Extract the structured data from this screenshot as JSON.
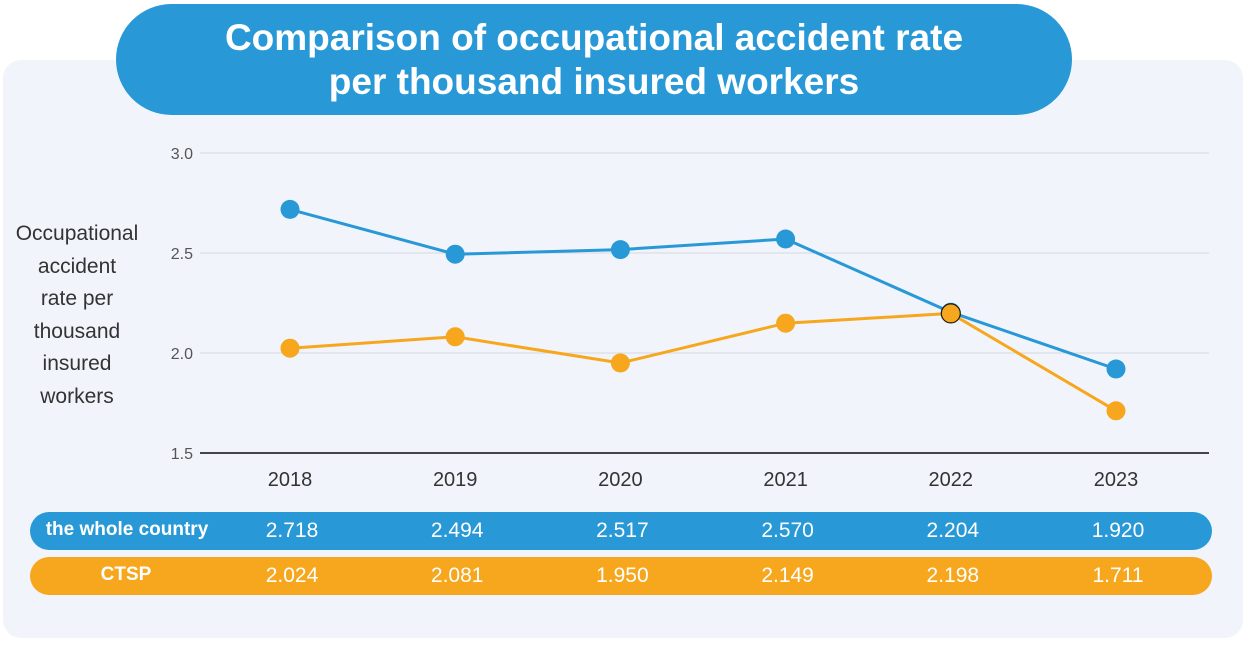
{
  "title_lines": [
    "Comparison of occupational accident rate",
    "per thousand insured workers"
  ],
  "colors": {
    "country": "#2899d6",
    "ctsp": "#f7a71d"
  },
  "chart_data": {
    "type": "line",
    "title": "Comparison of occupational accident rate per thousand insured workers",
    "ylabel_lines": [
      "Occupational",
      "accident",
      "rate per",
      "thousand",
      "insured",
      "workers"
    ],
    "ylim": [
      1.5,
      3.0
    ],
    "yticks": [
      "1.5",
      "2.0",
      "2.5",
      "3.0"
    ],
    "categories": [
      "2018",
      "2019",
      "2020",
      "2021",
      "2022",
      "2023"
    ],
    "series": [
      {
        "name": "the whole country",
        "values": [
          "2.718",
          "2.494",
          "2.517",
          "2.570",
          "2.204",
          "1.920"
        ]
      },
      {
        "name": "CTSP",
        "values": [
          "2.024",
          "2.081",
          "1.950",
          "2.149",
          "2.198",
          "1.711"
        ]
      }
    ],
    "grid": true
  }
}
